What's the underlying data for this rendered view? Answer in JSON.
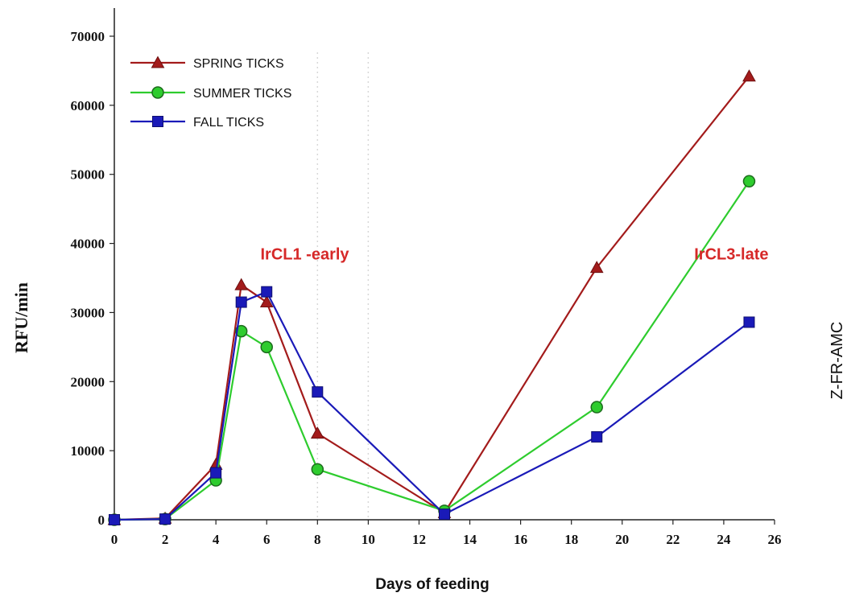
{
  "chart_data": {
    "type": "line",
    "title": "",
    "xlabel": "Days of feeding",
    "ylabel": "RFU/min",
    "side_label": "Z-FR-AMC",
    "xlim": [
      0,
      26
    ],
    "ylim": [
      0,
      70000
    ],
    "x_ticks": [
      0,
      2,
      4,
      6,
      8,
      10,
      12,
      14,
      16,
      18,
      20,
      22,
      24,
      26
    ],
    "y_ticks": [
      0,
      10000,
      20000,
      30000,
      40000,
      50000,
      60000,
      70000
    ],
    "grid": false,
    "legend_placement": "top-left",
    "series": [
      {
        "name": "SPRING TICKS",
        "color": "#a31b1b",
        "marker": "triangle",
        "x": [
          0,
          2,
          4,
          5,
          6,
          8,
          13,
          19,
          25
        ],
        "y": [
          0,
          200,
          8000,
          34000,
          31500,
          12500,
          1000,
          36500,
          64200
        ]
      },
      {
        "name": "SUMMER TICKS",
        "color": "#2ecc2e",
        "marker": "circle",
        "x": [
          0,
          2,
          4,
          5,
          6,
          8,
          13,
          19,
          25
        ],
        "y": [
          0,
          100,
          5700,
          27300,
          25000,
          7300,
          1300,
          16300,
          49000
        ]
      },
      {
        "name": "FALL TICKS",
        "color": "#1a1ab8",
        "marker": "square",
        "x": [
          0,
          2,
          4,
          5,
          6,
          8,
          13,
          19,
          25
        ],
        "y": [
          0,
          100,
          6800,
          31500,
          33000,
          18500,
          800,
          12000,
          28600
        ]
      }
    ],
    "annotations": [
      {
        "text": "IrCL1 -early",
        "color": "#d62828",
        "x": 7.5,
        "y": 38500
      },
      {
        "text": "IrCL3-late",
        "color": "#d62828",
        "x": 24.3,
        "y": 38500
      }
    ],
    "reference_lines_x": [
      8,
      10
    ]
  }
}
